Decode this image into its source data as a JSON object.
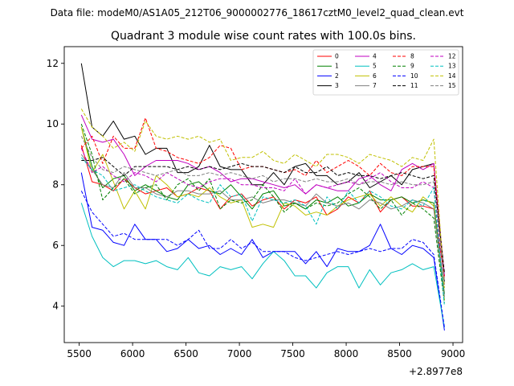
{
  "chart_data": {
    "type": "line",
    "suptitle": "Data file: modeM0/AS1A05_212T06_9000002776_18617cztM0_level2_quad_clean.evt",
    "title": "Quadrant 3 module wise count rates with 100.0s bins.",
    "xlabel": "",
    "ylabel": "",
    "x_offset_label": "+2.8977e8",
    "xlim": [
      5360,
      9090
    ],
    "ylim": [
      2.8,
      12.55
    ],
    "x_ticks": [
      5500,
      6000,
      6500,
      7000,
      7500,
      8000,
      8500,
      9000
    ],
    "x_tick_labels": [
      "5500",
      "6000",
      "6500",
      "7000",
      "7500",
      "8000",
      "8500",
      "9000"
    ],
    "y_ticks": [
      4,
      6,
      8,
      10,
      12
    ],
    "y_tick_labels": [
      "4",
      "6",
      "8",
      "10",
      "12"
    ],
    "grid": false,
    "legend_position": "top-right",
    "legend_ncol": 4,
    "x": [
      5520,
      5620,
      5720,
      5820,
      5920,
      6020,
      6120,
      6220,
      6320,
      6420,
      6520,
      6620,
      6720,
      6820,
      6920,
      7020,
      7120,
      7220,
      7320,
      7420,
      7520,
      7620,
      7720,
      7820,
      7920,
      8020,
      8120,
      8220,
      8320,
      8420,
      8520,
      8620,
      8720,
      8820,
      8920
    ],
    "series": [
      {
        "name": "0",
        "color": "#ff0000",
        "style": "solid",
        "values": [
          9.3,
          8.1,
          8.0,
          7.8,
          8.2,
          7.9,
          7.7,
          7.8,
          7.9,
          7.6,
          7.7,
          7.9,
          7.8,
          7.2,
          7.6,
          7.7,
          7.3,
          7.5,
          7.6,
          7.2,
          7.5,
          7.4,
          7.6,
          7.0,
          7.2,
          7.6,
          7.4,
          7.8,
          7.1,
          7.5,
          7.6,
          7.3,
          7.3,
          7.2,
          5.0
        ]
      },
      {
        "name": "1",
        "color": "#008000",
        "style": "solid",
        "values": [
          9.9,
          8.6,
          7.9,
          8.2,
          8.3,
          7.8,
          8.0,
          7.8,
          7.6,
          7.5,
          8.0,
          8.1,
          7.8,
          7.7,
          8.0,
          7.6,
          7.2,
          7.7,
          7.8,
          7.3,
          7.4,
          7.2,
          7.5,
          7.4,
          7.6,
          7.3,
          7.4,
          7.7,
          7.5,
          7.5,
          7.6,
          7.4,
          7.5,
          7.4,
          4.4
        ]
      },
      {
        "name": "2",
        "color": "#0000ff",
        "style": "solid",
        "values": [
          8.4,
          6.6,
          6.5,
          6.1,
          6.0,
          6.7,
          6.2,
          6.2,
          5.8,
          5.9,
          6.2,
          5.9,
          6.0,
          5.7,
          5.9,
          5.7,
          6.2,
          5.6,
          5.8,
          5.8,
          5.8,
          5.4,
          5.8,
          5.3,
          5.9,
          5.8,
          5.8,
          6.0,
          6.7,
          5.9,
          5.7,
          6.0,
          5.9,
          5.6,
          3.2
        ]
      },
      {
        "name": "3",
        "color": "#000000",
        "style": "solid",
        "values": [
          12.0,
          9.9,
          9.6,
          10.1,
          9.5,
          9.6,
          9.0,
          9.2,
          9.2,
          8.4,
          8.4,
          8.6,
          9.3,
          8.6,
          8.5,
          8.5,
          8.0,
          8.0,
          8.4,
          8.0,
          8.6,
          8.7,
          8.3,
          8.3,
          8.0,
          8.1,
          8.4,
          7.9,
          8.1,
          8.3,
          8.0,
          8.5,
          8.6,
          8.7,
          4.8
        ]
      },
      {
        "name": "4",
        "color": "#c000c0",
        "style": "solid",
        "values": [
          10.3,
          9.5,
          9.4,
          9.5,
          9.0,
          8.3,
          8.6,
          8.8,
          8.8,
          8.8,
          8.7,
          8.5,
          8.6,
          8.4,
          8.1,
          8.2,
          8.2,
          8.1,
          8.0,
          7.9,
          8.0,
          7.7,
          8.0,
          7.9,
          7.8,
          7.8,
          8.2,
          8.3,
          8.0,
          7.8,
          8.5,
          8.7,
          8.5,
          8.7,
          5.0
        ]
      },
      {
        "name": "5",
        "color": "#00c0c0",
        "style": "solid",
        "values": [
          7.4,
          6.3,
          5.6,
          5.3,
          5.5,
          5.5,
          5.4,
          5.5,
          5.3,
          5.2,
          5.6,
          5.1,
          5.0,
          5.3,
          5.2,
          5.3,
          4.9,
          5.4,
          5.8,
          5.5,
          5.0,
          5.0,
          4.6,
          5.1,
          5.3,
          5.3,
          4.6,
          5.2,
          4.7,
          5.1,
          5.2,
          5.4,
          5.2,
          5.3,
          3.3
        ]
      },
      {
        "name": "6",
        "color": "#c0c000",
        "style": "solid",
        "values": [
          9.9,
          8.4,
          9.0,
          8.1,
          7.2,
          7.8,
          7.2,
          8.3,
          8.0,
          7.6,
          7.7,
          7.6,
          7.9,
          7.6,
          7.4,
          7.5,
          6.6,
          6.7,
          6.6,
          7.4,
          7.3,
          7.0,
          7.1,
          7.0,
          7.3,
          7.5,
          7.6,
          7.7,
          7.3,
          7.6,
          7.3,
          7.1,
          7.6,
          7.3,
          4.2
        ]
      },
      {
        "name": "7",
        "color": "#808080",
        "style": "solid",
        "values": [
          9.0,
          8.5,
          8.0,
          7.9,
          8.4,
          7.9,
          7.9,
          7.7,
          7.6,
          7.8,
          7.8,
          7.7,
          7.7,
          7.8,
          7.5,
          7.5,
          7.6,
          7.4,
          7.5,
          7.5,
          7.4,
          7.3,
          7.7,
          7.4,
          7.3,
          7.4,
          7.2,
          7.5,
          7.4,
          7.2,
          7.3,
          7.5,
          7.4,
          7.2,
          4.3
        ]
      },
      {
        "name": "8",
        "color": "#ff0000",
        "style": "dashed",
        "values": [
          9.2,
          9.6,
          8.7,
          9.6,
          9.2,
          9.2,
          10.2,
          9.2,
          9.1,
          8.9,
          8.8,
          8.7,
          8.9,
          9.3,
          9.2,
          8.5,
          8.6,
          8.6,
          8.5,
          8.4,
          8.5,
          8.3,
          8.8,
          8.4,
          8.6,
          8.8,
          8.6,
          8.3,
          8.7,
          8.4,
          8.3,
          8.6,
          8.6,
          8.6,
          4.9
        ]
      },
      {
        "name": "9",
        "color": "#008000",
        "style": "dashed",
        "values": [
          10.0,
          9.0,
          7.5,
          7.9,
          8.2,
          7.7,
          7.9,
          8.0,
          7.5,
          8.0,
          8.2,
          7.8,
          8.2,
          7.2,
          7.5,
          7.4,
          7.5,
          8.0,
          7.6,
          7.1,
          7.4,
          7.2,
          7.4,
          7.3,
          7.4,
          7.7,
          7.9,
          7.6,
          7.2,
          7.5,
          7.0,
          7.4,
          7.2,
          6.9,
          4.1
        ]
      },
      {
        "name": "10",
        "color": "#0000ff",
        "style": "dashed",
        "values": [
          7.8,
          7.1,
          6.7,
          6.3,
          6.4,
          6.2,
          6.2,
          6.2,
          6.2,
          6.0,
          6.2,
          6.5,
          5.9,
          5.9,
          6.2,
          5.9,
          6.1,
          5.8,
          5.8,
          5.8,
          5.6,
          5.5,
          5.6,
          5.7,
          5.8,
          5.7,
          5.8,
          5.9,
          5.8,
          5.9,
          5.9,
          6.2,
          6.1,
          5.7,
          3.3
        ]
      },
      {
        "name": "11",
        "color": "#000000",
        "style": "dashed",
        "values": [
          8.8,
          8.8,
          8.9,
          8.6,
          8.3,
          8.6,
          8.6,
          8.6,
          8.6,
          8.5,
          8.6,
          8.5,
          8.6,
          8.5,
          8.6,
          8.7,
          8.6,
          8.6,
          8.5,
          8.4,
          8.6,
          8.4,
          8.4,
          8.6,
          8.3,
          8.4,
          8.3,
          8.3,
          8.2,
          8.3,
          8.4,
          8.3,
          8.2,
          8.3,
          5.1
        ]
      },
      {
        "name": "12",
        "color": "#c000c0",
        "style": "dashed",
        "values": [
          9.2,
          8.4,
          8.6,
          8.3,
          8.1,
          8.4,
          8.3,
          8.1,
          8.4,
          8.2,
          8.0,
          7.9,
          8.1,
          8.2,
          8.2,
          8.0,
          8.0,
          7.9,
          7.9,
          7.8,
          8.2,
          7.7,
          8.0,
          7.9,
          8.0,
          8.1,
          8.0,
          8.2,
          8.4,
          8.1,
          7.9,
          7.9,
          8.1,
          7.9,
          4.7
        ]
      },
      {
        "name": "13",
        "color": "#00c0c0",
        "style": "dashed",
        "values": [
          8.9,
          8.5,
          8.3,
          7.8,
          7.9,
          8.0,
          7.8,
          7.6,
          7.5,
          7.4,
          7.7,
          7.5,
          7.4,
          8.0,
          7.6,
          7.7,
          6.8,
          7.6,
          7.5,
          7.4,
          7.5,
          7.3,
          6.7,
          7.6,
          7.2,
          7.8,
          7.4,
          7.8,
          7.6,
          7.3,
          7.2,
          7.5,
          7.3,
          7.9,
          4.0
        ]
      },
      {
        "name": "14",
        "color": "#c0c000",
        "style": "dashed",
        "values": [
          10.5,
          9.9,
          9.6,
          9.2,
          9.4,
          9.1,
          10.1,
          9.6,
          9.5,
          9.6,
          9.5,
          9.6,
          9.4,
          9.5,
          8.8,
          8.9,
          8.9,
          9.1,
          8.8,
          8.7,
          9.0,
          8.8,
          8.6,
          9.0,
          9.0,
          8.9,
          8.7,
          9.0,
          8.9,
          8.8,
          8.6,
          8.9,
          8.8,
          9.5,
          4.6
        ]
      },
      {
        "name": "15",
        "color": "#808080",
        "style": "dashed",
        "values": [
          9.6,
          8.9,
          8.5,
          8.4,
          8.6,
          8.5,
          8.4,
          8.3,
          8.4,
          8.5,
          8.3,
          8.3,
          8.4,
          8.3,
          8.4,
          8.3,
          8.2,
          8.3,
          8.1,
          8.2,
          8.2,
          8.1,
          8.2,
          8.1,
          8.1,
          8.2,
          8.0,
          8.1,
          8.1,
          8.0,
          8.1,
          8.0,
          8.0,
          8.1,
          4.8
        ]
      }
    ]
  }
}
